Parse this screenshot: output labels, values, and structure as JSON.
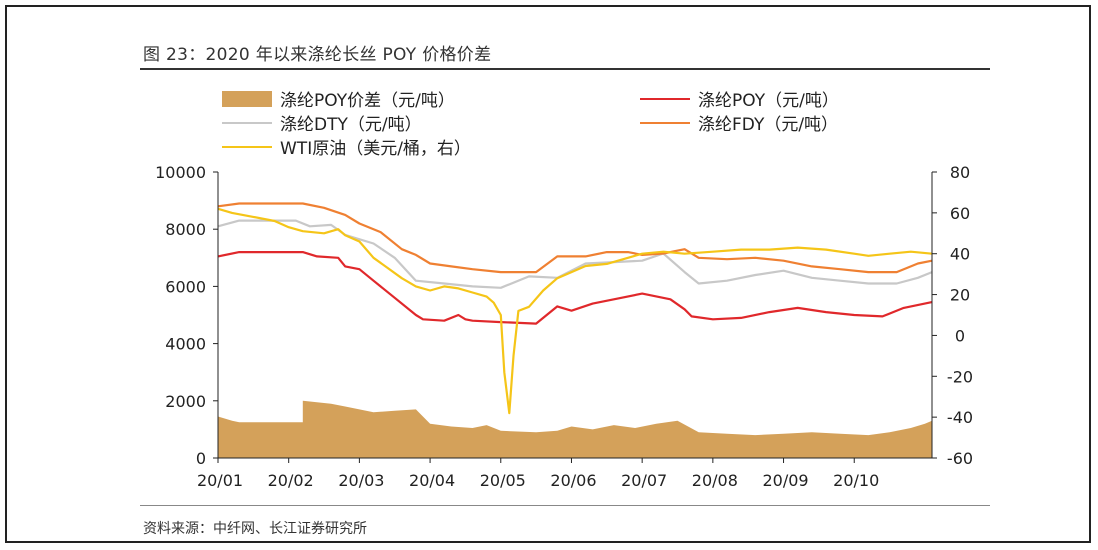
{
  "figure": {
    "title": "图 23：2020 年以来涤纶长丝 POY 价格价差",
    "source": "资料来源：中纤网、长江证券研究所"
  },
  "legend": [
    {
      "label": "涤纶POY价差（元/吨）",
      "color": "#d4a15a",
      "kind": "bar"
    },
    {
      "label": "涤纶POY（元/吨）",
      "color": "#e0282b",
      "kind": "line"
    },
    {
      "label": "涤纶DTY（元/吨）",
      "color": "#c8c8c8",
      "kind": "line"
    },
    {
      "label": "涤纶FDY（元/吨）",
      "color": "#ef8032",
      "kind": "line"
    },
    {
      "label": "WTI原油（美元/桶，右）",
      "color": "#f5c518",
      "kind": "line"
    }
  ],
  "chart_data": {
    "type": "line",
    "x_ticks": [
      "20/01",
      "20/02",
      "20/03",
      "20/04",
      "20/05",
      "20/06",
      "20/07",
      "20/08",
      "20/09",
      "20/10"
    ],
    "y_left_ticks": [
      "10000",
      "8000",
      "6000",
      "4000",
      "2000",
      "0"
    ],
    "y_right_ticks": [
      "80",
      "60",
      "40",
      "20",
      "0",
      "-20",
      "-40",
      "-60"
    ],
    "ylim_left": [
      0,
      10000
    ],
    "ylim_right": [
      -60,
      80
    ],
    "x_range": [
      0,
      10.1
    ],
    "series": [
      {
        "name": "涤纶POY价差（元/吨）",
        "type": "area",
        "axis": "left",
        "color": "#d4a15a",
        "points": [
          [
            0,
            1450
          ],
          [
            0.2,
            1300
          ],
          [
            0.3,
            1250
          ],
          [
            1.2,
            1250
          ],
          [
            1.2,
            2000
          ],
          [
            1.6,
            1900
          ],
          [
            1.8,
            1800
          ],
          [
            2.0,
            1700
          ],
          [
            2.2,
            1600
          ],
          [
            2.5,
            1650
          ],
          [
            2.8,
            1700
          ],
          [
            3.0,
            1200
          ],
          [
            3.3,
            1100
          ],
          [
            3.6,
            1050
          ],
          [
            3.8,
            1150
          ],
          [
            4.0,
            950
          ],
          [
            4.5,
            900
          ],
          [
            4.8,
            950
          ],
          [
            5.0,
            1100
          ],
          [
            5.3,
            1000
          ],
          [
            5.6,
            1150
          ],
          [
            5.9,
            1050
          ],
          [
            6.2,
            1200
          ],
          [
            6.5,
            1300
          ],
          [
            6.8,
            900
          ],
          [
            7.2,
            850
          ],
          [
            7.6,
            800
          ],
          [
            8.0,
            850
          ],
          [
            8.4,
            900
          ],
          [
            8.8,
            850
          ],
          [
            9.2,
            800
          ],
          [
            9.5,
            900
          ],
          [
            9.8,
            1050
          ],
          [
            10.0,
            1200
          ],
          [
            10.1,
            1300
          ]
        ]
      },
      {
        "name": "涤纶POY（元/吨）",
        "type": "line",
        "axis": "left",
        "color": "#e0282b",
        "points": [
          [
            0,
            7050
          ],
          [
            0.3,
            7200
          ],
          [
            1.2,
            7200
          ],
          [
            1.4,
            7050
          ],
          [
            1.7,
            7000
          ],
          [
            1.8,
            6700
          ],
          [
            2.0,
            6600
          ],
          [
            2.2,
            6200
          ],
          [
            2.5,
            5600
          ],
          [
            2.8,
            5000
          ],
          [
            2.9,
            4850
          ],
          [
            3.2,
            4800
          ],
          [
            3.4,
            5000
          ],
          [
            3.5,
            4850
          ],
          [
            3.6,
            4800
          ],
          [
            4.0,
            4750
          ],
          [
            4.5,
            4700
          ],
          [
            4.8,
            5300
          ],
          [
            5.0,
            5150
          ],
          [
            5.3,
            5400
          ],
          [
            5.6,
            5550
          ],
          [
            6.0,
            5750
          ],
          [
            6.4,
            5550
          ],
          [
            6.6,
            5200
          ],
          [
            6.7,
            4950
          ],
          [
            7.0,
            4850
          ],
          [
            7.4,
            4900
          ],
          [
            7.8,
            5100
          ],
          [
            8.2,
            5250
          ],
          [
            8.6,
            5100
          ],
          [
            9.0,
            5000
          ],
          [
            9.4,
            4950
          ],
          [
            9.7,
            5250
          ],
          [
            10.1,
            5450
          ]
        ]
      },
      {
        "name": "涤纶DTY（元/吨）",
        "type": "line",
        "axis": "left",
        "color": "#c8c8c8",
        "points": [
          [
            0,
            8100
          ],
          [
            0.3,
            8300
          ],
          [
            1.1,
            8300
          ],
          [
            1.3,
            8100
          ],
          [
            1.6,
            8150
          ],
          [
            1.8,
            7800
          ],
          [
            2.2,
            7500
          ],
          [
            2.5,
            7000
          ],
          [
            2.8,
            6200
          ],
          [
            3.2,
            6100
          ],
          [
            3.6,
            6000
          ],
          [
            4.0,
            5950
          ],
          [
            4.4,
            6350
          ],
          [
            4.8,
            6300
          ],
          [
            5.2,
            6800
          ],
          [
            5.6,
            6850
          ],
          [
            6.0,
            6900
          ],
          [
            6.3,
            7150
          ],
          [
            6.6,
            6500
          ],
          [
            6.8,
            6100
          ],
          [
            7.2,
            6200
          ],
          [
            7.6,
            6400
          ],
          [
            8.0,
            6550
          ],
          [
            8.4,
            6300
          ],
          [
            8.8,
            6200
          ],
          [
            9.2,
            6100
          ],
          [
            9.6,
            6100
          ],
          [
            9.9,
            6300
          ],
          [
            10.1,
            6500
          ]
        ]
      },
      {
        "name": "涤纶FDY（元/吨）",
        "type": "line",
        "axis": "left",
        "color": "#ef8032",
        "points": [
          [
            0,
            8800
          ],
          [
            0.3,
            8900
          ],
          [
            1.2,
            8900
          ],
          [
            1.5,
            8750
          ],
          [
            1.8,
            8500
          ],
          [
            2.0,
            8200
          ],
          [
            2.3,
            7900
          ],
          [
            2.6,
            7300
          ],
          [
            2.8,
            7100
          ],
          [
            3.0,
            6800
          ],
          [
            3.3,
            6700
          ],
          [
            3.6,
            6600
          ],
          [
            4.0,
            6500
          ],
          [
            4.5,
            6500
          ],
          [
            4.8,
            7050
          ],
          [
            5.2,
            7050
          ],
          [
            5.5,
            7200
          ],
          [
            5.8,
            7200
          ],
          [
            6.0,
            7100
          ],
          [
            6.3,
            7150
          ],
          [
            6.6,
            7300
          ],
          [
            6.8,
            7000
          ],
          [
            7.2,
            6950
          ],
          [
            7.6,
            7000
          ],
          [
            8.0,
            6900
          ],
          [
            8.4,
            6700
          ],
          [
            8.8,
            6600
          ],
          [
            9.2,
            6500
          ],
          [
            9.6,
            6500
          ],
          [
            9.9,
            6800
          ],
          [
            10.1,
            6900
          ]
        ]
      },
      {
        "name": "WTI原油（美元/桶，右）",
        "type": "line",
        "axis": "right",
        "color": "#f5c518",
        "points": [
          [
            0,
            62
          ],
          [
            0.2,
            60
          ],
          [
            0.5,
            58
          ],
          [
            0.8,
            56
          ],
          [
            1.0,
            53
          ],
          [
            1.2,
            51
          ],
          [
            1.5,
            50
          ],
          [
            1.7,
            52
          ],
          [
            1.8,
            49
          ],
          [
            2.0,
            46
          ],
          [
            2.2,
            38
          ],
          [
            2.4,
            33
          ],
          [
            2.6,
            28
          ],
          [
            2.8,
            24
          ],
          [
            3.0,
            22
          ],
          [
            3.2,
            24
          ],
          [
            3.4,
            23
          ],
          [
            3.6,
            21
          ],
          [
            3.8,
            19
          ],
          [
            3.9,
            16
          ],
          [
            4.0,
            10
          ],
          [
            4.05,
            -18
          ],
          [
            4.12,
            -38
          ],
          [
            4.18,
            -10
          ],
          [
            4.25,
            12
          ],
          [
            4.4,
            14
          ],
          [
            4.6,
            22
          ],
          [
            4.8,
            28
          ],
          [
            5.0,
            31
          ],
          [
            5.2,
            34
          ],
          [
            5.5,
            35
          ],
          [
            5.8,
            38
          ],
          [
            6.0,
            40
          ],
          [
            6.3,
            41
          ],
          [
            6.6,
            40
          ],
          [
            7.0,
            41
          ],
          [
            7.4,
            42
          ],
          [
            7.8,
            42
          ],
          [
            8.2,
            43
          ],
          [
            8.6,
            42
          ],
          [
            9.0,
            40
          ],
          [
            9.2,
            39
          ],
          [
            9.5,
            40
          ],
          [
            9.8,
            41
          ],
          [
            10.1,
            40
          ]
        ]
      }
    ]
  }
}
